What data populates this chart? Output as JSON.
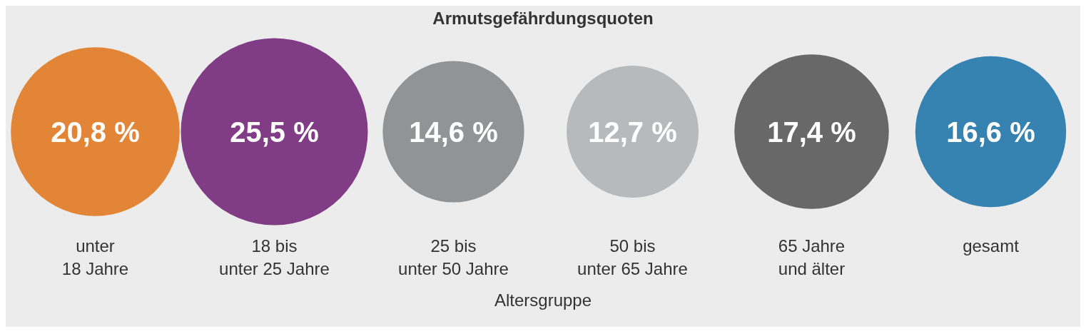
{
  "chart_data": {
    "type": "other",
    "title": "Armutsgefährdungsquoten",
    "xlabel": "Altersgruppe",
    "categories": [
      "unter\n18 Jahre",
      "18 bis\nunter 25 Jahre",
      "25 bis\nunter 50 Jahre",
      "50 bis\nunter 65 Jahre",
      "65 Jahre\nund älter",
      "gesamt"
    ],
    "values": [
      20.8,
      25.5,
      14.6,
      12.7,
      17.4,
      16.6
    ],
    "value_labels": [
      "20,8 %",
      "25,5 %",
      "14,6 %",
      "12,7 %",
      "17,4 %",
      "16,6 %"
    ],
    "colors": [
      "#e38536",
      "#813c86",
      "#929394",
      "#b8b9ba",
      "#676867",
      "#3682b0"
    ]
  }
}
